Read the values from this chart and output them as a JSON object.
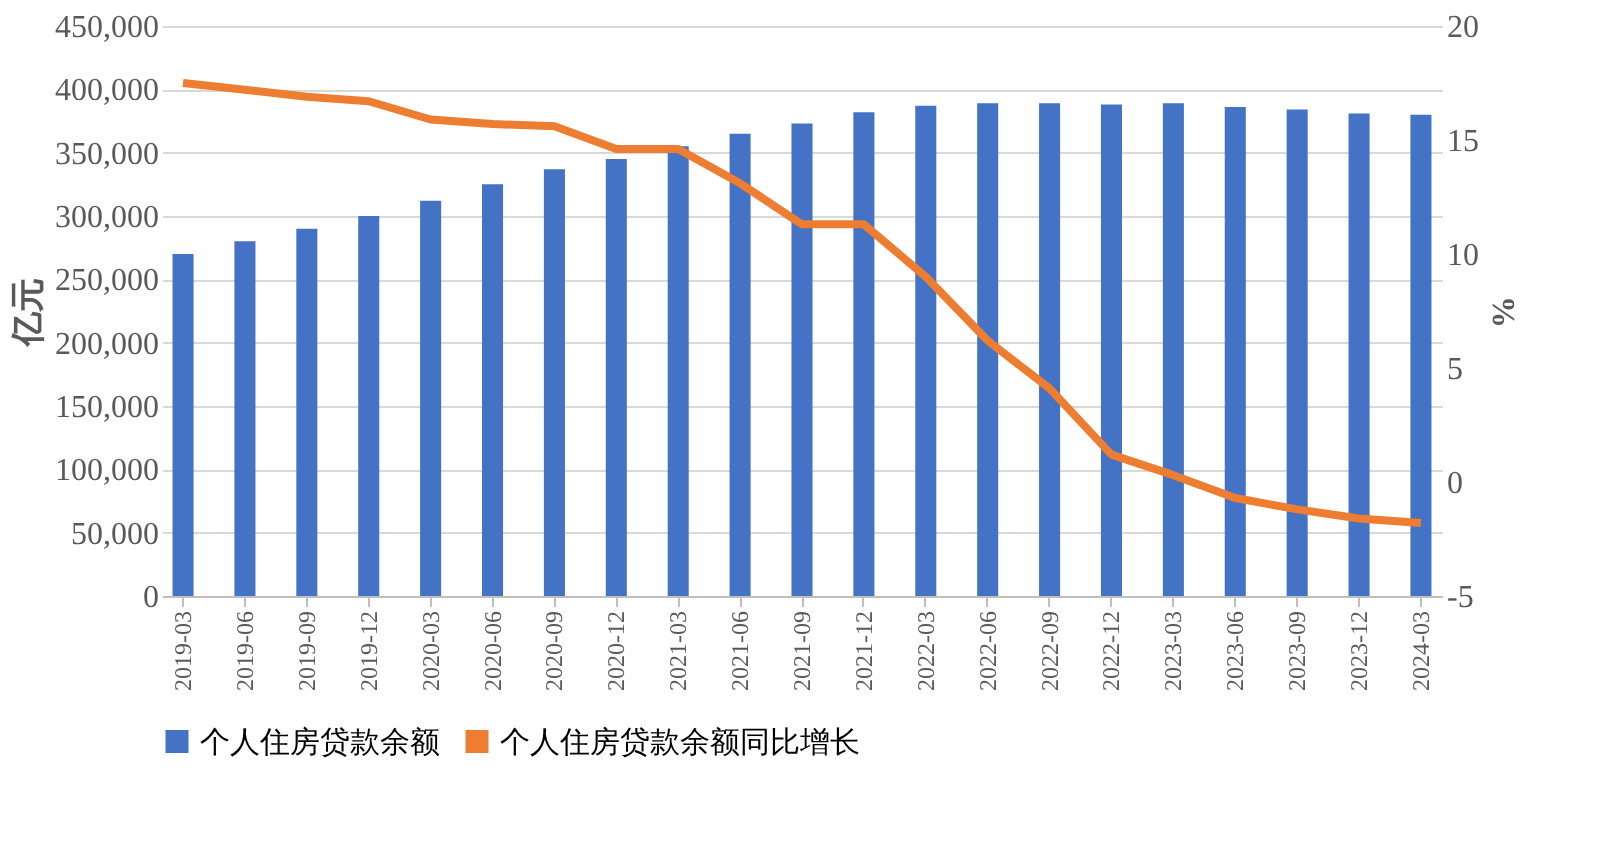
{
  "chart_data": {
    "type": "bar",
    "categories": [
      "2019-03",
      "2019-06",
      "2019-09",
      "2019-12",
      "2020-03",
      "2020-06",
      "2020-09",
      "2020-12",
      "2021-03",
      "2021-06",
      "2021-09",
      "2021-12",
      "2022-03",
      "2022-06",
      "2022-09",
      "2022-12",
      "2023-03",
      "2023-06",
      "2023-09",
      "2023-12",
      "2024-03"
    ],
    "series": [
      {
        "name": "个人住房贷款余额",
        "color": "#4472c4",
        "values": [
          270000,
          280000,
          290000,
          300000,
          312000,
          325000,
          337000,
          345000,
          355000,
          365000,
          373000,
          382000,
          387000,
          389000,
          389000,
          388000,
          389000,
          386000,
          384000,
          381000,
          380000
        ]
      },
      {
        "name": "个人住房贷款余额同比增长",
        "type": "line",
        "axis": "y2",
        "color": "#ed7d31",
        "values": [
          17.5,
          17.2,
          16.9,
          16.7,
          15.9,
          15.7,
          15.6,
          14.6,
          14.6,
          13.1,
          11.3,
          11.3,
          9.0,
          6.2,
          4.1,
          1.2,
          0.3,
          -0.7,
          -1.2,
          -1.6,
          -1.8
        ]
      }
    ],
    "ylabel": "亿元",
    "y2label": "%",
    "ylim": [
      0,
      450000
    ],
    "yticks": [
      {
        "value": 0,
        "label": "0"
      },
      {
        "value": 50000,
        "label": "50,000"
      },
      {
        "value": 100000,
        "label": "100,000"
      },
      {
        "value": 150000,
        "label": "150,000"
      },
      {
        "value": 200000,
        "label": "200,000"
      },
      {
        "value": 250000,
        "label": "250,000"
      },
      {
        "value": 300000,
        "label": "300,000"
      },
      {
        "value": 350000,
        "label": "350,000"
      },
      {
        "value": 400000,
        "label": "400,000"
      },
      {
        "value": 450000,
        "label": "450,000"
      }
    ],
    "y2lim": [
      -5,
      20
    ],
    "y2ticks": [
      -5,
      0,
      5,
      10,
      15,
      20
    ],
    "grid": "y",
    "legend": "bottom",
    "marker": "none",
    "line_style": "solid"
  }
}
